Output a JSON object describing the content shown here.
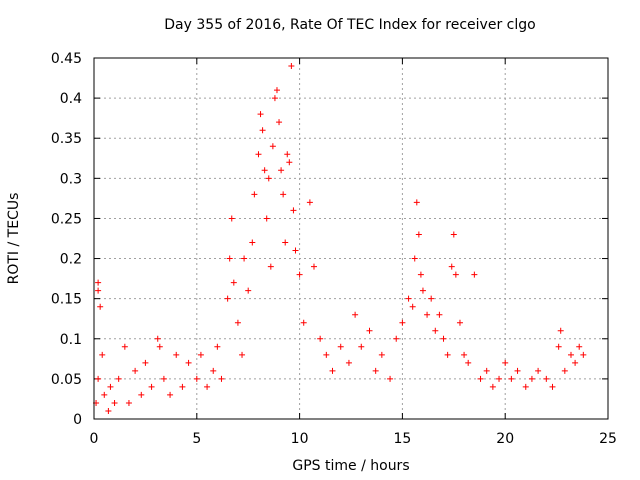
{
  "chart_data": {
    "type": "scatter",
    "title": "Day 355 of 2016, Rate Of TEC Index for receiver clgo",
    "xlabel": "GPS time / hours",
    "ylabel": "ROTI / TECUs",
    "xlim": [
      0,
      25
    ],
    "ylim": [
      0,
      0.45
    ],
    "xticks": [
      "0",
      "5",
      "10",
      "15",
      "20",
      "25"
    ],
    "yticks": [
      "0",
      "0.05",
      "0.1",
      "0.15",
      "0.2",
      "0.25",
      "0.3",
      "0.35",
      "0.4",
      "0.45"
    ],
    "grid": true,
    "marker": "plus",
    "marker_color": "#ff0000",
    "series": [
      {
        "points": [
          [
            0.1,
            0.02
          ],
          [
            0.2,
            0.05
          ],
          [
            0.2,
            0.17
          ],
          [
            0.2,
            0.16
          ],
          [
            0.3,
            0.14
          ],
          [
            0.4,
            0.08
          ],
          [
            0.5,
            0.03
          ],
          [
            0.7,
            0.01
          ],
          [
            0.8,
            0.04
          ],
          [
            1.0,
            0.02
          ],
          [
            1.2,
            0.05
          ],
          [
            1.5,
            0.09
          ],
          [
            1.7,
            0.02
          ],
          [
            2.0,
            0.06
          ],
          [
            2.3,
            0.03
          ],
          [
            2.5,
            0.07
          ],
          [
            2.8,
            0.04
          ],
          [
            3.1,
            0.1
          ],
          [
            3.2,
            0.09
          ],
          [
            3.4,
            0.05
          ],
          [
            3.7,
            0.03
          ],
          [
            4.0,
            0.08
          ],
          [
            4.3,
            0.04
          ],
          [
            4.6,
            0.07
          ],
          [
            5.0,
            0.05
          ],
          [
            5.2,
            0.08
          ],
          [
            5.5,
            0.04
          ],
          [
            5.8,
            0.06
          ],
          [
            6.0,
            0.09
          ],
          [
            6.2,
            0.05
          ],
          [
            6.5,
            0.15
          ],
          [
            6.6,
            0.2
          ],
          [
            6.7,
            0.25
          ],
          [
            6.8,
            0.17
          ],
          [
            7.0,
            0.12
          ],
          [
            7.2,
            0.08
          ],
          [
            7.3,
            0.2
          ],
          [
            7.5,
            0.16
          ],
          [
            7.7,
            0.22
          ],
          [
            7.8,
            0.28
          ],
          [
            8.0,
            0.33
          ],
          [
            8.1,
            0.38
          ],
          [
            8.2,
            0.36
          ],
          [
            8.3,
            0.31
          ],
          [
            8.4,
            0.25
          ],
          [
            8.5,
            0.3
          ],
          [
            8.6,
            0.19
          ],
          [
            8.7,
            0.34
          ],
          [
            8.8,
            0.4
          ],
          [
            8.9,
            0.41
          ],
          [
            9.0,
            0.37
          ],
          [
            9.1,
            0.31
          ],
          [
            9.2,
            0.28
          ],
          [
            9.3,
            0.22
          ],
          [
            9.4,
            0.33
          ],
          [
            9.5,
            0.32
          ],
          [
            9.6,
            0.44
          ],
          [
            9.7,
            0.26
          ],
          [
            9.8,
            0.21
          ],
          [
            10.0,
            0.18
          ],
          [
            10.2,
            0.12
          ],
          [
            10.5,
            0.27
          ],
          [
            10.7,
            0.19
          ],
          [
            11.0,
            0.1
          ],
          [
            11.3,
            0.08
          ],
          [
            11.6,
            0.06
          ],
          [
            12.0,
            0.09
          ],
          [
            12.4,
            0.07
          ],
          [
            12.7,
            0.13
          ],
          [
            13.0,
            0.09
          ],
          [
            13.4,
            0.11
          ],
          [
            13.7,
            0.06
          ],
          [
            14.0,
            0.08
          ],
          [
            14.4,
            0.05
          ],
          [
            14.7,
            0.1
          ],
          [
            15.0,
            0.12
          ],
          [
            15.3,
            0.15
          ],
          [
            15.5,
            0.14
          ],
          [
            15.6,
            0.2
          ],
          [
            15.7,
            0.27
          ],
          [
            15.8,
            0.23
          ],
          [
            15.9,
            0.18
          ],
          [
            16.0,
            0.16
          ],
          [
            16.2,
            0.13
          ],
          [
            16.4,
            0.15
          ],
          [
            16.6,
            0.11
          ],
          [
            16.8,
            0.13
          ],
          [
            17.0,
            0.1
          ],
          [
            17.2,
            0.08
          ],
          [
            17.4,
            0.19
          ],
          [
            17.5,
            0.23
          ],
          [
            17.6,
            0.18
          ],
          [
            17.8,
            0.12
          ],
          [
            18.0,
            0.08
          ],
          [
            18.2,
            0.07
          ],
          [
            18.5,
            0.18
          ],
          [
            18.8,
            0.05
          ],
          [
            19.1,
            0.06
          ],
          [
            19.4,
            0.04
          ],
          [
            19.7,
            0.05
          ],
          [
            20.0,
            0.07
          ],
          [
            20.3,
            0.05
          ],
          [
            20.6,
            0.06
          ],
          [
            21.0,
            0.04
          ],
          [
            21.3,
            0.05
          ],
          [
            21.6,
            0.06
          ],
          [
            22.0,
            0.05
          ],
          [
            22.3,
            0.04
          ],
          [
            22.6,
            0.09
          ],
          [
            22.7,
            0.11
          ],
          [
            22.9,
            0.06
          ],
          [
            23.2,
            0.08
          ],
          [
            23.4,
            0.07
          ],
          [
            23.6,
            0.09
          ],
          [
            23.8,
            0.08
          ]
        ]
      }
    ]
  }
}
